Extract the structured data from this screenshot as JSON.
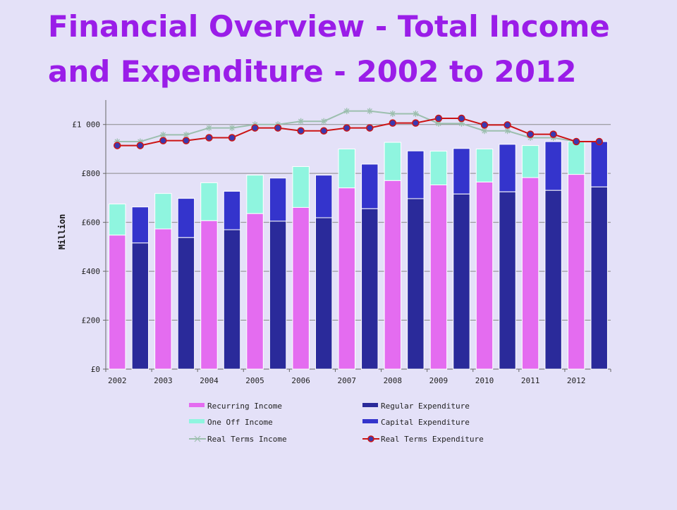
{
  "slide": {
    "title_line1": "Financial Overview - Total Income",
    "title_line2": "and Expenditure - 2002 to 2012"
  },
  "colors": {
    "background": "#e4e1f8",
    "title": "#9a1de8",
    "recurring_income": "#e46cf0",
    "one_off_income": "#8ff5df",
    "regular_expenditure": "#2a2a9a",
    "capital_expenditure": "#3434cc",
    "real_terms_income": "#9cbfae",
    "real_terms_expenditure": "#cc1414",
    "real_terms_expenditure_marker": "#3a3ab0"
  },
  "chart_data": {
    "type": "bar",
    "title": "",
    "xlabel": "",
    "ylabel": "Million",
    "ylim": [
      0,
      1100
    ],
    "yticks": [
      0,
      200,
      400,
      600,
      800,
      1000
    ],
    "ytick_labels": [
      "£0",
      "£200",
      "£400",
      "£600",
      "£800",
      "£1 000"
    ],
    "grid": "horizontal",
    "legend_position": "bottom",
    "categories": [
      "2002",
      "2003",
      "2004",
      "2005",
      "2006",
      "2007",
      "2008",
      "2009",
      "2010",
      "2011",
      "2012"
    ],
    "income_stack": {
      "series": [
        {
          "name": "Recurring Income",
          "values": [
            548,
            573,
            607,
            636,
            661,
            741,
            771,
            753,
            765,
            783,
            796
          ]
        },
        {
          "name": "One Off Income",
          "values": [
            127,
            145,
            155,
            157,
            167,
            159,
            156,
            138,
            135,
            131,
            134
          ]
        }
      ]
    },
    "expenditure_stack": {
      "series": [
        {
          "name": "Regular Expenditure",
          "values": [
            516,
            538,
            570,
            605,
            619,
            656,
            697,
            716,
            725,
            731,
            745
          ]
        },
        {
          "name": "Capital Expenditure",
          "values": [
            147,
            160,
            157,
            176,
            174,
            182,
            195,
            186,
            194,
            199,
            185
          ]
        }
      ]
    },
    "lines": [
      {
        "name": "Real Terms Income",
        "marker": "asterisk",
        "values": [
          930,
          930,
          958,
          958,
          986,
          986,
          1000,
          1000,
          1013,
          1013,
          1055,
          1055,
          1044,
          1044,
          1004,
          1004,
          974,
          974,
          946,
          946,
          930,
          930
        ]
      },
      {
        "name": "Real Terms Expenditure",
        "marker": "circle",
        "values": [
          914,
          914,
          934,
          934,
          946,
          946,
          986,
          986,
          974,
          974,
          986,
          986,
          1006,
          1006,
          1025,
          1025,
          998,
          998,
          960,
          960,
          930,
          930
        ]
      }
    ],
    "legend": [
      {
        "name": "Recurring Income",
        "kind": "bar",
        "color": "#e46cf0"
      },
      {
        "name": "Regular Expenditure",
        "kind": "bar",
        "color": "#2a2a9a"
      },
      {
        "name": "One Off Income",
        "kind": "bar",
        "color": "#8ff5df"
      },
      {
        "name": "Capital Expenditure",
        "kind": "bar",
        "color": "#3434cc"
      },
      {
        "name": "Real Terms Income",
        "kind": "line",
        "color": "#9cbfae"
      },
      {
        "name": "Real Terms Expenditure",
        "kind": "line",
        "color": "#cc1414"
      }
    ]
  }
}
